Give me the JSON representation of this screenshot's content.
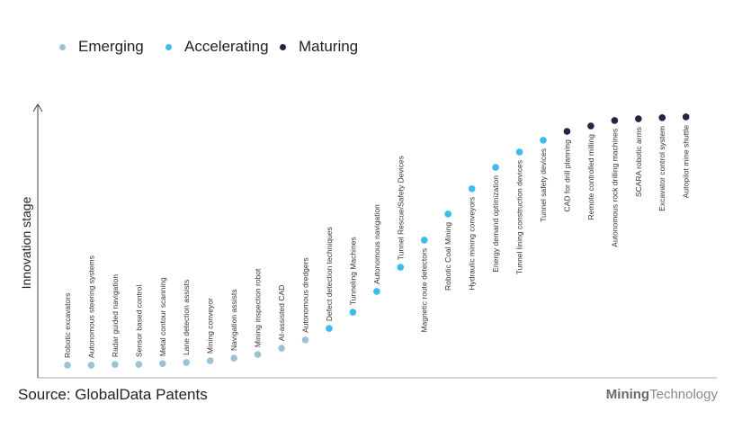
{
  "chart_data": {
    "type": "scatter",
    "title": "",
    "xlabel": "",
    "ylabel": "Innovation stage",
    "ylim": [
      0,
      100
    ],
    "legend_position": "top-left",
    "colors": {
      "Emerging": "#9cc2d6",
      "Accelerating": "#3bbcea",
      "Maturing": "#2b2140"
    },
    "legend": [
      "Emerging",
      "Accelerating",
      "Maturing"
    ],
    "points": [
      {
        "label": "Robotic excavators",
        "stage": "Emerging",
        "y": 4.6
      },
      {
        "label": "Autonomous steering systems",
        "stage": "Emerging",
        "y": 4.6
      },
      {
        "label": "Radar guided navigation",
        "stage": "Emerging",
        "y": 4.9
      },
      {
        "label": "Sensor based control",
        "stage": "Emerging",
        "y": 4.9
      },
      {
        "label": "Metal contour scanning",
        "stage": "Emerging",
        "y": 5.2
      },
      {
        "label": "Lane detection assists",
        "stage": "Emerging",
        "y": 5.6
      },
      {
        "label": "Mining conveyor",
        "stage": "Emerging",
        "y": 6.2
      },
      {
        "label": "Navigation assists",
        "stage": "Emerging",
        "y": 7.2
      },
      {
        "label": "Mining inspection robot",
        "stage": "Emerging",
        "y": 8.5
      },
      {
        "label": "AI-assisted CAD",
        "stage": "Emerging",
        "y": 10.8
      },
      {
        "label": "Autonomous dredgers",
        "stage": "Emerging",
        "y": 13.8
      },
      {
        "label": "Defect detection techniques",
        "stage": "Accelerating",
        "y": 18.0
      },
      {
        "label": "Tunneling Machines",
        "stage": "Accelerating",
        "y": 23.9
      },
      {
        "label": "Autonomous navigation",
        "stage": "Accelerating",
        "y": 31.5
      },
      {
        "label": "Tunnel Rescue/Safety Devices",
        "stage": "Accelerating",
        "y": 40.3
      },
      {
        "label": "Magnetic route detectors",
        "stage": "Accelerating",
        "y": 50.2,
        "below": true
      },
      {
        "label": "Robotic Coal Mining",
        "stage": "Accelerating",
        "y": 59.7,
        "below": true
      },
      {
        "label": "Hydraulic mining conveyors",
        "stage": "Accelerating",
        "y": 68.9,
        "below": true
      },
      {
        "label": "Energy demand optimization",
        "stage": "Accelerating",
        "y": 76.7,
        "below": true
      },
      {
        "label": "Tunnel lining construction devices",
        "stage": "Accelerating",
        "y": 82.3,
        "below": true
      },
      {
        "label": "Tunnel safety devices",
        "stage": "Accelerating",
        "y": 86.6,
        "below": true
      },
      {
        "label": "CAD for drill planning",
        "stage": "Maturing",
        "y": 89.8,
        "below": true
      },
      {
        "label": "Remote controlled milling",
        "stage": "Maturing",
        "y": 91.8,
        "below": true
      },
      {
        "label": "Autonomous rock drilling machines",
        "stage": "Maturing",
        "y": 93.8,
        "below": true
      },
      {
        "label": "SCARA robotic arms",
        "stage": "Maturing",
        "y": 94.4,
        "below": true
      },
      {
        "label": "Excavator control system",
        "stage": "Maturing",
        "y": 94.8,
        "below": true
      },
      {
        "label": "Autopilot mine shuttle",
        "stage": "Maturing",
        "y": 95.1,
        "below": true
      }
    ]
  },
  "footer": {
    "source": "Source: GlobalData Patents",
    "logo_bold": "Mining",
    "logo_rest": "Technology"
  }
}
